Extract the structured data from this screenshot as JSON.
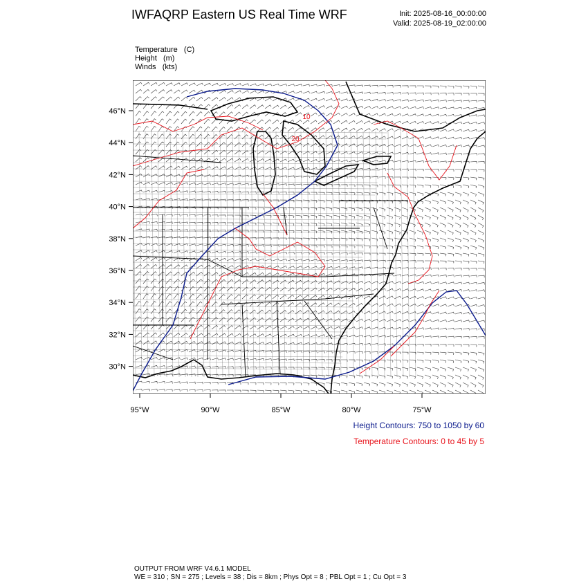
{
  "header": {
    "title": "IWFAQRP Eastern US Real Time WRF",
    "init": "Init: 2025-08-16_00:00:00",
    "valid": "Valid: 2025-08-19_02:00:00"
  },
  "fields": [
    "Temperature   (C)",
    "Height   (m)",
    "Winds   (kts)"
  ],
  "map": {
    "lat_labels": [
      "46°N",
      "44°N",
      "42°N",
      "40°N",
      "38°N",
      "36°N",
      "34°N",
      "32°N",
      "30°N"
    ],
    "lon_labels": [
      "95°W",
      "90°W",
      "85°W",
      "80°W",
      "75°W"
    ],
    "contour_labels": [
      "10",
      "20"
    ]
  },
  "legend": {
    "height": "Height Contours: 750 to 1050 by 60",
    "temperature": "Temperature Contours: 0 to 45 by 5"
  },
  "footer": {
    "model": "OUTPUT FROM WRF V4.6.1 MODEL",
    "settings": "WE = 310 ; SN = 275 ; Levels = 38 ; Dis = 8km ; Phys Opt = 8 ; PBL Opt = 1 ; Cu Opt = 3"
  }
}
